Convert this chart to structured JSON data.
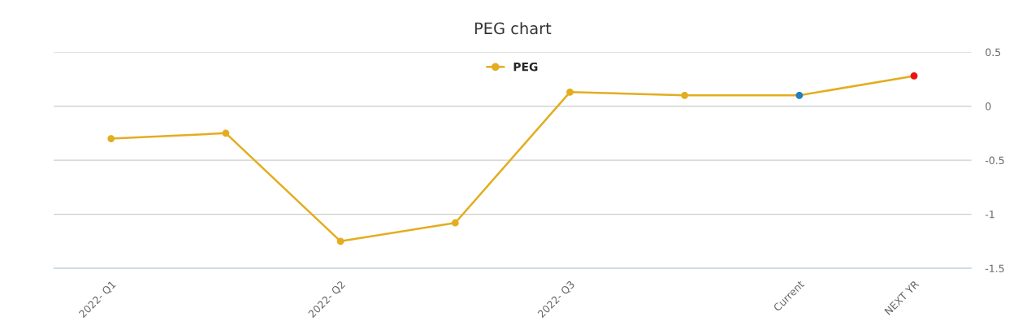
{
  "chart_data": {
    "type": "line",
    "title": "PEG chart",
    "categories": [
      "2022- Q1",
      null,
      "2022- Q2",
      null,
      "2022- Q3",
      null,
      "Current",
      "NEXT YR"
    ],
    "series": [
      {
        "name": "PEG",
        "color": "#e3ad1f",
        "values": [
          -0.3,
          -0.25,
          -1.25,
          -1.08,
          0.13,
          0.1,
          0.1,
          0.28
        ],
        "colors": [
          "#e3ad1f",
          "#e3ad1f",
          "#e3ad1f",
          "#e3ad1f",
          "#e3ad1f",
          "#e3ad1f",
          "#1f7fbf",
          "#ee1111"
        ]
      }
    ],
    "ylim": [
      -1.5,
      0.5
    ],
    "yticks": [
      -1.5,
      -1,
      -0.5,
      0,
      0.5
    ],
    "grid": "y",
    "legend": "top",
    "marker": "circle",
    "line_style": "solid"
  }
}
